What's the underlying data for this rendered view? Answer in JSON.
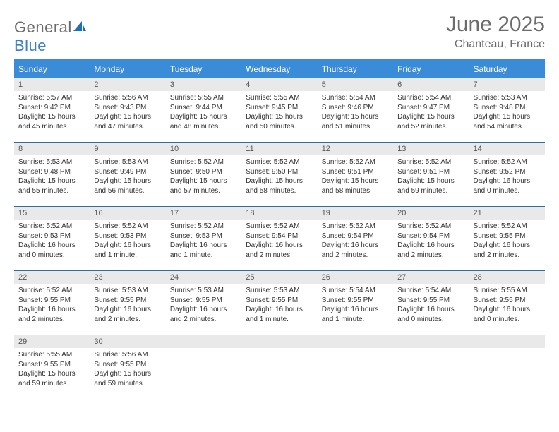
{
  "logo": {
    "text_general": "General",
    "text_blue": "Blue"
  },
  "header": {
    "title": "June 2025",
    "subtitle": "Chanteau, France"
  },
  "colors": {
    "header_bg": "#3a8bd8",
    "header_border": "#2f6fa8",
    "day_num_bg": "#e9e9e9",
    "text_gray": "#6b6b6b",
    "logo_blue": "#3a7fc4"
  },
  "week_days": [
    "Sunday",
    "Monday",
    "Tuesday",
    "Wednesday",
    "Thursday",
    "Friday",
    "Saturday"
  ],
  "days": [
    {
      "n": "1",
      "sunrise": "5:57 AM",
      "sunset": "9:42 PM",
      "daylight": "15 hours and 45 minutes."
    },
    {
      "n": "2",
      "sunrise": "5:56 AM",
      "sunset": "9:43 PM",
      "daylight": "15 hours and 47 minutes."
    },
    {
      "n": "3",
      "sunrise": "5:55 AM",
      "sunset": "9:44 PM",
      "daylight": "15 hours and 48 minutes."
    },
    {
      "n": "4",
      "sunrise": "5:55 AM",
      "sunset": "9:45 PM",
      "daylight": "15 hours and 50 minutes."
    },
    {
      "n": "5",
      "sunrise": "5:54 AM",
      "sunset": "9:46 PM",
      "daylight": "15 hours and 51 minutes."
    },
    {
      "n": "6",
      "sunrise": "5:54 AM",
      "sunset": "9:47 PM",
      "daylight": "15 hours and 52 minutes."
    },
    {
      "n": "7",
      "sunrise": "5:53 AM",
      "sunset": "9:48 PM",
      "daylight": "15 hours and 54 minutes."
    },
    {
      "n": "8",
      "sunrise": "5:53 AM",
      "sunset": "9:48 PM",
      "daylight": "15 hours and 55 minutes."
    },
    {
      "n": "9",
      "sunrise": "5:53 AM",
      "sunset": "9:49 PM",
      "daylight": "15 hours and 56 minutes."
    },
    {
      "n": "10",
      "sunrise": "5:52 AM",
      "sunset": "9:50 PM",
      "daylight": "15 hours and 57 minutes."
    },
    {
      "n": "11",
      "sunrise": "5:52 AM",
      "sunset": "9:50 PM",
      "daylight": "15 hours and 58 minutes."
    },
    {
      "n": "12",
      "sunrise": "5:52 AM",
      "sunset": "9:51 PM",
      "daylight": "15 hours and 58 minutes."
    },
    {
      "n": "13",
      "sunrise": "5:52 AM",
      "sunset": "9:51 PM",
      "daylight": "15 hours and 59 minutes."
    },
    {
      "n": "14",
      "sunrise": "5:52 AM",
      "sunset": "9:52 PM",
      "daylight": "16 hours and 0 minutes."
    },
    {
      "n": "15",
      "sunrise": "5:52 AM",
      "sunset": "9:53 PM",
      "daylight": "16 hours and 0 minutes."
    },
    {
      "n": "16",
      "sunrise": "5:52 AM",
      "sunset": "9:53 PM",
      "daylight": "16 hours and 1 minute."
    },
    {
      "n": "17",
      "sunrise": "5:52 AM",
      "sunset": "9:53 PM",
      "daylight": "16 hours and 1 minute."
    },
    {
      "n": "18",
      "sunrise": "5:52 AM",
      "sunset": "9:54 PM",
      "daylight": "16 hours and 2 minutes."
    },
    {
      "n": "19",
      "sunrise": "5:52 AM",
      "sunset": "9:54 PM",
      "daylight": "16 hours and 2 minutes."
    },
    {
      "n": "20",
      "sunrise": "5:52 AM",
      "sunset": "9:54 PM",
      "daylight": "16 hours and 2 minutes."
    },
    {
      "n": "21",
      "sunrise": "5:52 AM",
      "sunset": "9:55 PM",
      "daylight": "16 hours and 2 minutes."
    },
    {
      "n": "22",
      "sunrise": "5:52 AM",
      "sunset": "9:55 PM",
      "daylight": "16 hours and 2 minutes."
    },
    {
      "n": "23",
      "sunrise": "5:53 AM",
      "sunset": "9:55 PM",
      "daylight": "16 hours and 2 minutes."
    },
    {
      "n": "24",
      "sunrise": "5:53 AM",
      "sunset": "9:55 PM",
      "daylight": "16 hours and 2 minutes."
    },
    {
      "n": "25",
      "sunrise": "5:53 AM",
      "sunset": "9:55 PM",
      "daylight": "16 hours and 1 minute."
    },
    {
      "n": "26",
      "sunrise": "5:54 AM",
      "sunset": "9:55 PM",
      "daylight": "16 hours and 1 minute."
    },
    {
      "n": "27",
      "sunrise": "5:54 AM",
      "sunset": "9:55 PM",
      "daylight": "16 hours and 0 minutes."
    },
    {
      "n": "28",
      "sunrise": "5:55 AM",
      "sunset": "9:55 PM",
      "daylight": "16 hours and 0 minutes."
    },
    {
      "n": "29",
      "sunrise": "5:55 AM",
      "sunset": "9:55 PM",
      "daylight": "15 hours and 59 minutes."
    },
    {
      "n": "30",
      "sunrise": "5:56 AM",
      "sunset": "9:55 PM",
      "daylight": "15 hours and 59 minutes."
    }
  ],
  "labels": {
    "sunrise": "Sunrise:",
    "sunset": "Sunset:",
    "daylight": "Daylight:"
  }
}
